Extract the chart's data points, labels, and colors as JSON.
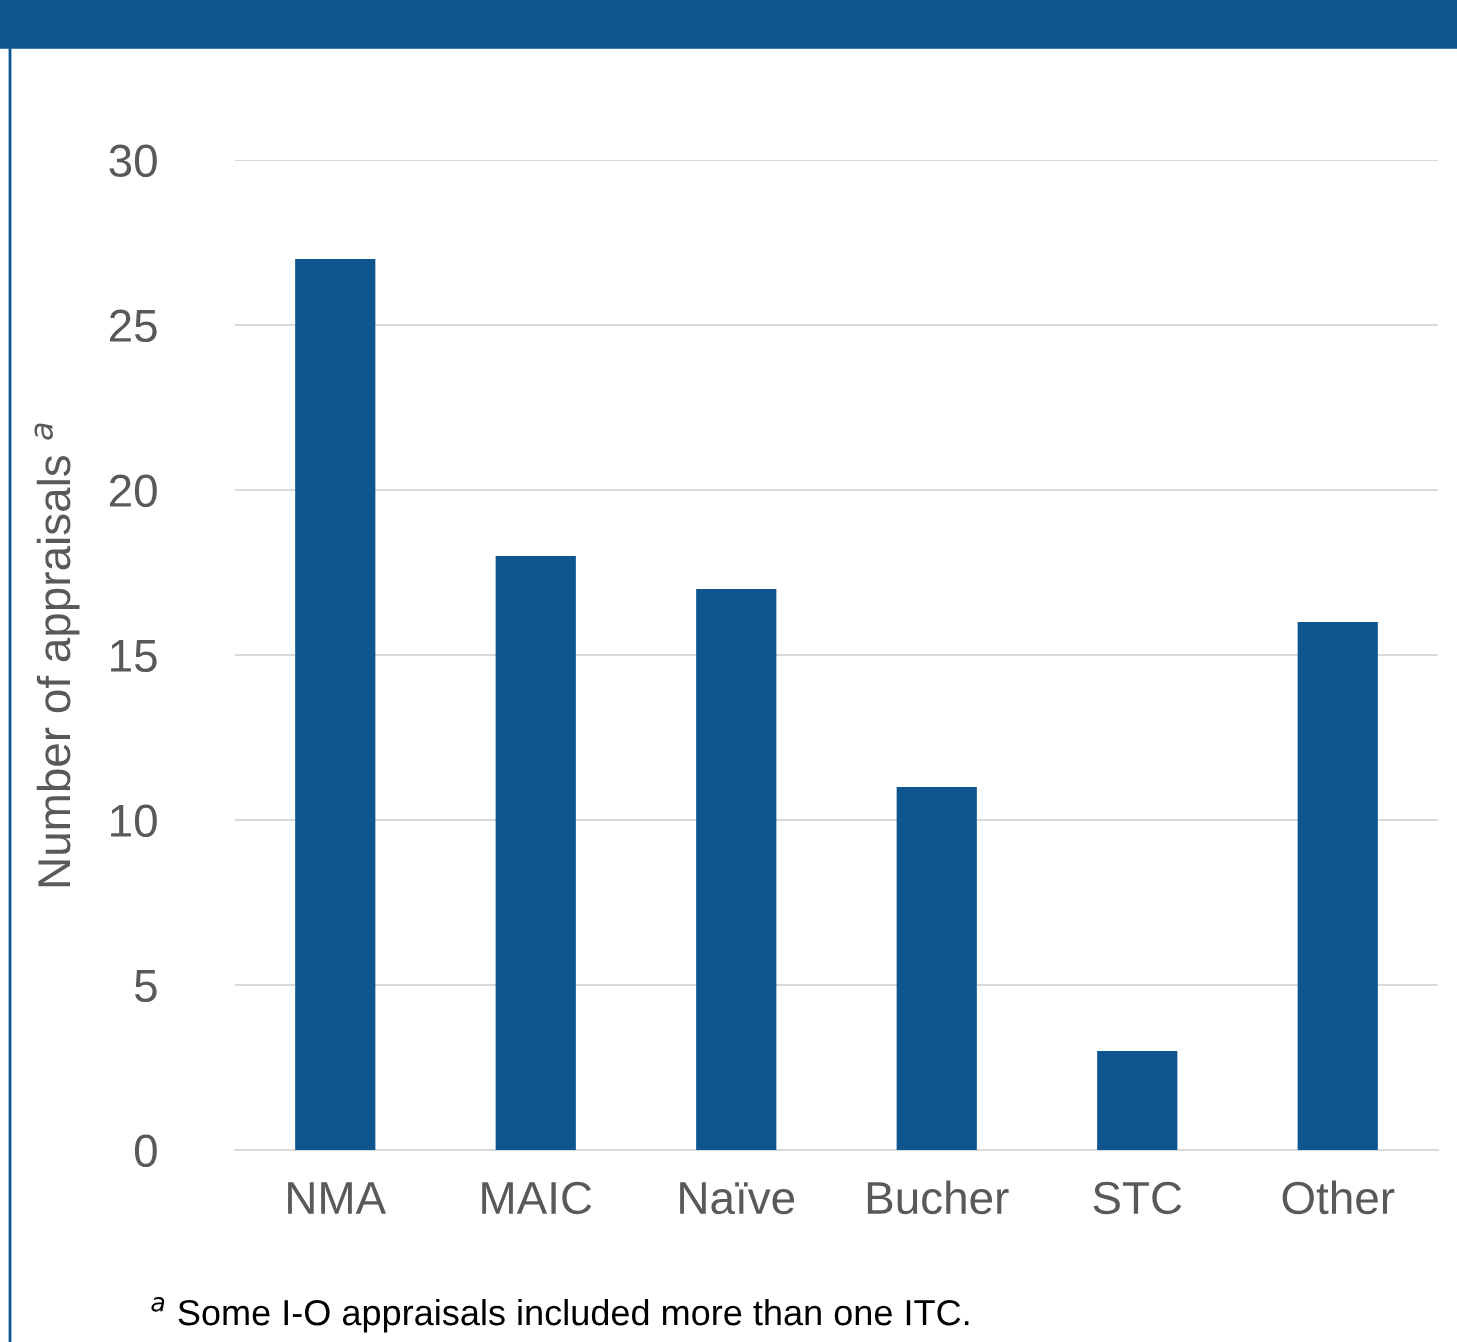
{
  "chart_data": {
    "type": "bar",
    "categories": [
      "NMA",
      "MAIC",
      "Naïve",
      "Bucher",
      "STC",
      "Other"
    ],
    "values": [
      27,
      18,
      17,
      11,
      3,
      16
    ],
    "color": "#0f5590",
    "ylabel": "Number of appraisals $^{a}$",
    "ylim": [
      0,
      30
    ],
    "yticks": [
      0,
      5,
      10,
      15,
      20,
      25,
      30
    ],
    "grid": "y",
    "annotations": [
      "$^{a}$ Some I-O appraisals included more than one ITC."
    ]
  }
}
